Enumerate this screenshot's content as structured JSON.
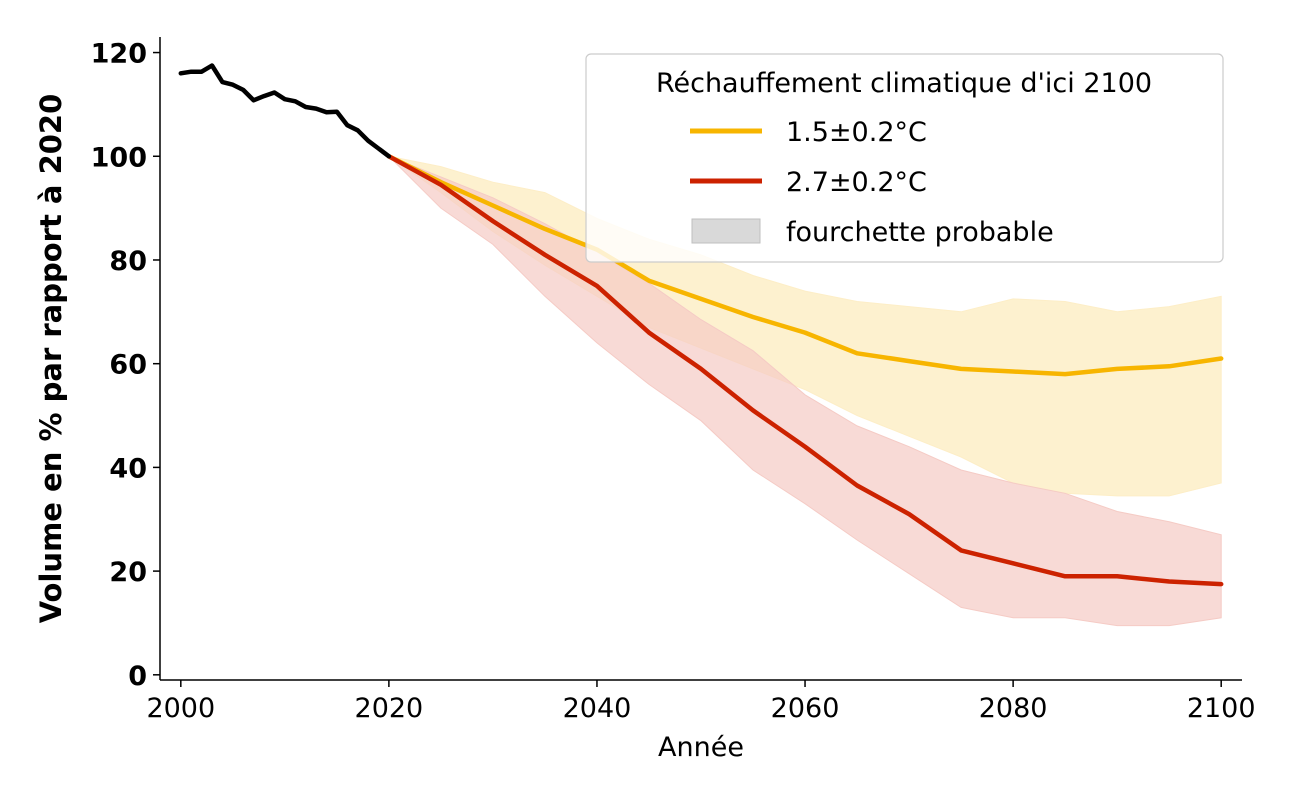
{
  "chart_data": {
    "type": "line",
    "title": "",
    "xlabel": "Année",
    "ylabel": "Volume en % par rapport à 2020",
    "xlim": [
      1998,
      2102
    ],
    "ylim": [
      -1,
      123
    ],
    "xticks": [
      2000,
      2020,
      2040,
      2060,
      2080,
      2100
    ],
    "yticks": [
      0,
      20,
      40,
      60,
      80,
      100,
      120
    ],
    "legend": {
      "title": "Réchauffement climatique d'ici 2100",
      "position": "top-right",
      "entries": [
        "1.5±0.2°C",
        "2.7±0.2°C",
        "fourchette probable"
      ]
    },
    "historical": {
      "name": "historique",
      "color": "#000000",
      "x": [
        2000,
        2001,
        2002,
        2003,
        2004,
        2005,
        2006,
        2007,
        2008,
        2009,
        2010,
        2011,
        2012,
        2013,
        2014,
        2015,
        2016,
        2017,
        2018,
        2019,
        2020
      ],
      "y": [
        116,
        116.3,
        116.3,
        117.5,
        114.3,
        113.8,
        112.8,
        110.8,
        111.6,
        112.3,
        111,
        110.6,
        109.5,
        109.2,
        108.5,
        108.6,
        106,
        105,
        103,
        101.5,
        100
      ]
    },
    "series": [
      {
        "name": "1.5±0.2°C",
        "color": "#f7b500",
        "band_color": "#fdeec7",
        "x": [
          2020,
          2025,
          2030,
          2035,
          2040,
          2045,
          2050,
          2055,
          2060,
          2065,
          2070,
          2075,
          2080,
          2085,
          2090,
          2095,
          2100
        ],
        "values": [
          100,
          95,
          90.5,
          86,
          82,
          76,
          72.5,
          69,
          66,
          62,
          60.5,
          59,
          58.5,
          58,
          59,
          59.5,
          61
        ],
        "band_x": [
          2020,
          2025,
          2030,
          2035,
          2040,
          2045,
          2050,
          2055,
          2060,
          2065,
          2070,
          2075,
          2080,
          2085,
          2090,
          2095,
          2100
        ],
        "band_low": [
          100,
          93,
          85.5,
          79,
          73,
          67,
          63,
          59,
          55,
          50,
          46,
          42,
          37,
          35,
          34.5,
          34.5,
          37
        ],
        "band_high": [
          100,
          98,
          95,
          93,
          88,
          84,
          81,
          77,
          74,
          72,
          71,
          70,
          72.5,
          72,
          70,
          71,
          73
        ]
      },
      {
        "name": "2.7±0.2°C",
        "color": "#cc2200",
        "band_color": "#f5cbc5",
        "x": [
          2020,
          2025,
          2030,
          2035,
          2040,
          2045,
          2050,
          2055,
          2060,
          2065,
          2070,
          2075,
          2080,
          2085,
          2090,
          2095,
          2100
        ],
        "values": [
          100,
          94.5,
          87.5,
          81,
          75,
          66,
          59,
          51,
          44,
          36.5,
          31,
          24,
          21.5,
          19,
          19,
          18,
          17.5
        ],
        "band_x": [
          2020,
          2025,
          2030,
          2035,
          2040,
          2045,
          2050,
          2055,
          2060,
          2065,
          2070,
          2075,
          2080,
          2085,
          2090,
          2095,
          2100
        ],
        "band_low": [
          100,
          90,
          83,
          73,
          64,
          56,
          49,
          39.5,
          33,
          26,
          19.5,
          13,
          11,
          11,
          9.5,
          9.5,
          11
        ],
        "band_high": [
          100,
          96,
          92,
          87,
          81.5,
          75.5,
          68.5,
          62.5,
          54,
          48,
          44,
          39.5,
          37,
          35,
          31.5,
          29.5,
          27
        ]
      }
    ]
  }
}
